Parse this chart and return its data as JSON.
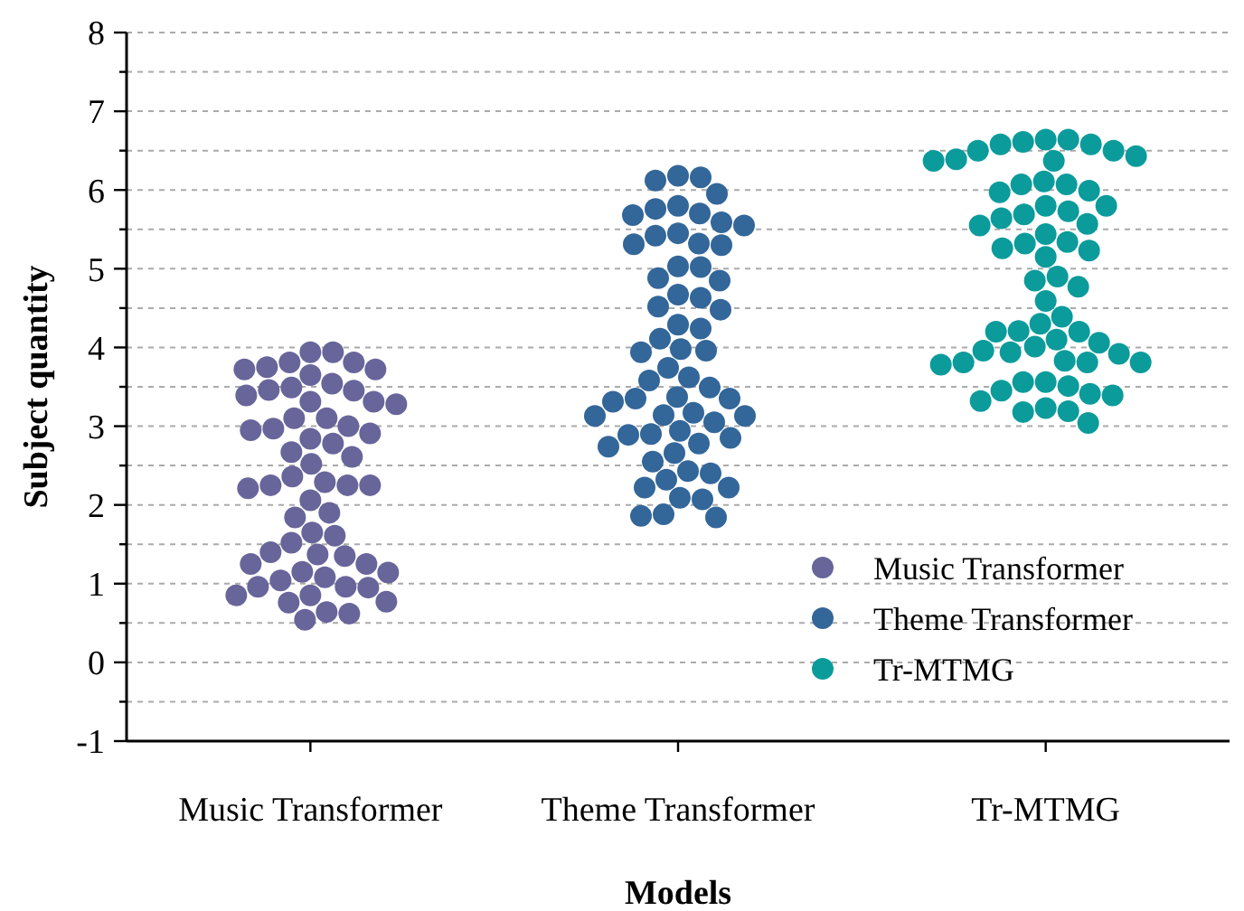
{
  "chart_data": {
    "type": "scatter",
    "xlabel": "Models",
    "ylabel": "Subject quantity",
    "categories": [
      "Music Transformer",
      "Theme Transformer",
      "Tr-MTMG"
    ],
    "ylim": [
      -1,
      8
    ],
    "yticks": [
      -1,
      {
        "value": -0.5,
        "label": null
      },
      0,
      {
        "value": 0.5,
        "label": null
      },
      1,
      {
        "value": 1.5,
        "label": null
      },
      2,
      {
        "value": 2.5,
        "label": null
      },
      3,
      {
        "value": 3.5,
        "label": null
      },
      4,
      {
        "value": 4.5,
        "label": null
      },
      5,
      {
        "value": 5.5,
        "label": null
      },
      6,
      {
        "value": 6.5,
        "label": null
      },
      7,
      {
        "value": 7.5,
        "label": null
      },
      8
    ],
    "grid": "y",
    "legend": "bottom right",
    "marker": "circle",
    "series": [
      {
        "name": "Music Transformer",
        "color": "#67659a",
        "x": [
          "Music Transformer",
          "Music Transformer",
          "Music Transformer",
          "Music Transformer",
          "Music Transformer",
          "Music Transformer",
          "Music Transformer",
          "Music Transformer",
          "Music Transformer",
          "Music Transformer",
          "Music Transformer",
          "Music Transformer",
          "Music Transformer",
          "Music Transformer",
          "Music Transformer",
          "Music Transformer",
          "Music Transformer",
          "Music Transformer",
          "Music Transformer",
          "Music Transformer",
          "Music Transformer",
          "Music Transformer",
          "Music Transformer",
          "Music Transformer",
          "Music Transformer",
          "Music Transformer",
          "Music Transformer",
          "Music Transformer",
          "Music Transformer",
          "Music Transformer",
          "Music Transformer",
          "Music Transformer",
          "Music Transformer",
          "Music Transformer",
          "Music Transformer",
          "Music Transformer",
          "Music Transformer",
          "Music Transformer",
          "Music Transformer",
          "Music Transformer",
          "Music Transformer",
          "Music Transformer",
          "Music Transformer",
          "Music Transformer",
          "Music Transformer",
          "Music Transformer",
          "Music Transformer",
          "Music Transformer",
          "Music Transformer",
          "Music Transformer",
          "Music Transformer",
          "Music Transformer",
          "Music Transformer",
          "Music Transformer",
          "Music Transformer",
          "Music Transformer",
          "Music Transformer",
          "Music Transformer"
        ],
        "values": [
          3.94,
          3.94,
          3.81,
          3.72,
          3.75,
          3.65,
          3.72,
          3.81,
          3.45,
          3.54,
          3.49,
          3.46,
          3.39,
          3.31,
          3.28,
          3.31,
          3.1,
          3.1,
          3.0,
          2.95,
          2.97,
          2.91,
          2.84,
          2.78,
          2.67,
          2.61,
          2.52,
          2.36,
          2.25,
          2.25,
          2.21,
          2.25,
          2.29,
          2.06,
          1.9,
          1.84,
          1.61,
          1.65,
          1.52,
          1.37,
          1.4,
          1.35,
          1.25,
          1.25,
          1.14,
          1.15,
          1.08,
          0.96,
          0.95,
          0.96,
          1.04,
          0.85,
          0.85,
          0.76,
          0.77,
          0.64,
          0.62,
          0.54
        ]
      },
      {
        "name": "Theme Transformer",
        "color": "#336699",
        "x": [
          "Theme Transformer",
          "Theme Transformer",
          "Theme Transformer",
          "Theme Transformer",
          "Theme Transformer",
          "Theme Transformer",
          "Theme Transformer",
          "Theme Transformer",
          "Theme Transformer",
          "Theme Transformer",
          "Theme Transformer",
          "Theme Transformer",
          "Theme Transformer",
          "Theme Transformer",
          "Theme Transformer",
          "Theme Transformer",
          "Theme Transformer",
          "Theme Transformer",
          "Theme Transformer",
          "Theme Transformer",
          "Theme Transformer",
          "Theme Transformer",
          "Theme Transformer",
          "Theme Transformer",
          "Theme Transformer",
          "Theme Transformer",
          "Theme Transformer",
          "Theme Transformer",
          "Theme Transformer",
          "Theme Transformer",
          "Theme Transformer",
          "Theme Transformer",
          "Theme Transformer",
          "Theme Transformer",
          "Theme Transformer",
          "Theme Transformer",
          "Theme Transformer",
          "Theme Transformer",
          "Theme Transformer",
          "Theme Transformer",
          "Theme Transformer",
          "Theme Transformer",
          "Theme Transformer",
          "Theme Transformer",
          "Theme Transformer",
          "Theme Transformer",
          "Theme Transformer",
          "Theme Transformer",
          "Theme Transformer",
          "Theme Transformer",
          "Theme Transformer",
          "Theme Transformer",
          "Theme Transformer",
          "Theme Transformer",
          "Theme Transformer",
          "Theme Transformer",
          "Theme Transformer",
          "Theme Transformer",
          "Theme Transformer",
          "Theme Transformer"
        ],
        "values": [
          6.12,
          6.16,
          6.18,
          5.95,
          5.76,
          5.68,
          5.55,
          5.59,
          5.7,
          5.8,
          5.42,
          5.31,
          5.3,
          5.32,
          5.45,
          5.03,
          5.02,
          4.85,
          4.88,
          4.67,
          4.63,
          4.48,
          4.52,
          4.29,
          4.24,
          3.98,
          3.94,
          3.96,
          4.11,
          3.74,
          3.62,
          3.58,
          3.49,
          3.35,
          3.35,
          3.31,
          3.37,
          3.17,
          3.14,
          3.13,
          3.05,
          3.13,
          2.9,
          2.89,
          2.85,
          2.74,
          2.78,
          2.94,
          2.66,
          2.55,
          2.4,
          2.32,
          2.22,
          2.22,
          2.43,
          2.07,
          2.09,
          1.86,
          1.84,
          1.88
        ]
      },
      {
        "name": "Tr-MTMG",
        "color": "#0b9b9b",
        "x": [
          "Tr-MTMG",
          "Tr-MTMG",
          "Tr-MTMG",
          "Tr-MTMG",
          "Tr-MTMG",
          "Tr-MTMG",
          "Tr-MTMG",
          "Tr-MTMG",
          "Tr-MTMG",
          "Tr-MTMG",
          "Tr-MTMG",
          "Tr-MTMG",
          "Tr-MTMG",
          "Tr-MTMG",
          "Tr-MTMG",
          "Tr-MTMG",
          "Tr-MTMG",
          "Tr-MTMG",
          "Tr-MTMG",
          "Tr-MTMG",
          "Tr-MTMG",
          "Tr-MTMG",
          "Tr-MTMG",
          "Tr-MTMG",
          "Tr-MTMG",
          "Tr-MTMG",
          "Tr-MTMG",
          "Tr-MTMG",
          "Tr-MTMG",
          "Tr-MTMG",
          "Tr-MTMG",
          "Tr-MTMG",
          "Tr-MTMG",
          "Tr-MTMG",
          "Tr-MTMG",
          "Tr-MTMG",
          "Tr-MTMG",
          "Tr-MTMG",
          "Tr-MTMG",
          "Tr-MTMG",
          "Tr-MTMG",
          "Tr-MTMG",
          "Tr-MTMG",
          "Tr-MTMG",
          "Tr-MTMG",
          "Tr-MTMG",
          "Tr-MTMG",
          "Tr-MTMG",
          "Tr-MTMG",
          "Tr-MTMG",
          "Tr-MTMG",
          "Tr-MTMG",
          "Tr-MTMG",
          "Tr-MTMG",
          "Tr-MTMG",
          "Tr-MTMG",
          "Tr-MTMG",
          "Tr-MTMG",
          "Tr-MTMG",
          "Tr-MTMG"
        ],
        "values": [
          6.58,
          6.58,
          6.61,
          6.64,
          6.64,
          6.43,
          6.37,
          6.37,
          6.39,
          6.5,
          6.5,
          6.07,
          5.99,
          5.97,
          6.07,
          6.11,
          5.8,
          5.69,
          5.8,
          5.57,
          5.55,
          5.64,
          5.73,
          5.44,
          5.34,
          5.23,
          5.15,
          5.26,
          5.32,
          4.77,
          4.85,
          4.9,
          4.59,
          4.3,
          4.39,
          4.2,
          4.2,
          4.06,
          4.1,
          4.21,
          4.01,
          3.94,
          3.96,
          3.92,
          3.83,
          3.81,
          3.78,
          3.81,
          3.81,
          3.56,
          3.51,
          3.45,
          3.56,
          3.41,
          3.32,
          3.39,
          3.18,
          3.19,
          3.23,
          3.04
        ]
      }
    ]
  }
}
